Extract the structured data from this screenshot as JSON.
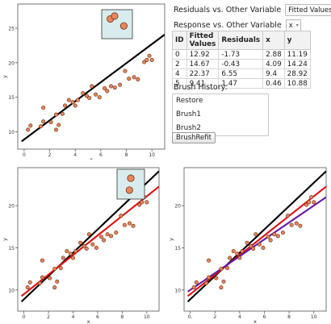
{
  "controls": {
    "residuals_label": "Residuals vs. Other Variable",
    "residuals_value": "Fitted Values",
    "response_label": "Response vs. Other Variable",
    "response_value": "x",
    "brush_history_label": "Brush History:",
    "brush_items": [
      "Restore",
      "Brush1",
      "Brush2"
    ],
    "refit_button": "BrushRefit"
  },
  "table": {
    "headers": [
      "ID",
      "Fitted Values",
      "Residuals",
      "x",
      "y"
    ],
    "rows": [
      [
        "0",
        "12.92",
        "-1.73",
        "2.88",
        "11.19"
      ],
      [
        "2",
        "14.67",
        "-0.43",
        "4.09",
        "14.24"
      ],
      [
        "4",
        "22.37",
        "6.55",
        "9.4",
        "28.92"
      ],
      [
        "5",
        "9.41",
        "1.47",
        "0.46",
        "10.88"
      ]
    ]
  },
  "chart_data": [
    {
      "type": "scatter",
      "xlabel": "x",
      "ylabel": "y",
      "xlim": [
        -0.5,
        11
      ],
      "ylim": [
        7.5,
        28.5
      ],
      "xticks": [
        0,
        2,
        4,
        6,
        8,
        10
      ],
      "xtick_labels": [
        "0",
        "2",
        "4",
        "6",
        "8",
        "10"
      ],
      "yticks": [
        10,
        15,
        20,
        25
      ],
      "points": [
        [
          0.3,
          10.3
        ],
        [
          0.5,
          10.9
        ],
        [
          1.3,
          10.8
        ],
        [
          1.5,
          11.5
        ],
        [
          1.5,
          13.5
        ],
        [
          2.1,
          11.4
        ],
        [
          2.5,
          12.5
        ],
        [
          2.5,
          10.3
        ],
        [
          2.7,
          11.0
        ],
        [
          3.0,
          12.6
        ],
        [
          3.2,
          13.8
        ],
        [
          3.5,
          14.6
        ],
        [
          3.8,
          14.3
        ],
        [
          4.0,
          13.8
        ],
        [
          4.2,
          14.6
        ],
        [
          4.6,
          15.6
        ],
        [
          4.9,
          15.2
        ],
        [
          5.1,
          14.9
        ],
        [
          5.3,
          16.6
        ],
        [
          5.6,
          15.4
        ],
        [
          5.9,
          15.0
        ],
        [
          6.3,
          16.3
        ],
        [
          6.5,
          15.9
        ],
        [
          6.8,
          16.6
        ],
        [
          7.1,
          16.4
        ],
        [
          7.5,
          16.8
        ],
        [
          7.9,
          18.8
        ],
        [
          8.2,
          17.7
        ],
        [
          8.6,
          17.9
        ],
        [
          8.9,
          17.6
        ],
        [
          9.4,
          20.1
        ],
        [
          9.6,
          20.4
        ],
        [
          9.8,
          21.0
        ],
        [
          10.0,
          20.4
        ]
      ],
      "lines": [
        {
          "intercept": 8.9,
          "slope": 1.38,
          "color": "#000000"
        }
      ],
      "inset": {
        "points": [
          [
            0.28,
            0.32
          ],
          [
            0.42,
            0.22
          ],
          [
            0.72,
            0.56
          ]
        ]
      }
    },
    {
      "type": "scatter",
      "xlabel": "x",
      "ylabel": "y",
      "xlim": [
        -0.5,
        11
      ],
      "ylim": [
        7.5,
        24.5
      ],
      "xticks": [
        0,
        2,
        4,
        6,
        8,
        10
      ],
      "xtick_labels": [
        "0",
        "2",
        "4",
        "6",
        "8",
        "10"
      ],
      "yticks": [
        10,
        15,
        20
      ],
      "points": [
        [
          0.3,
          10.3
        ],
        [
          0.5,
          10.9
        ],
        [
          1.3,
          10.8
        ],
        [
          1.5,
          11.5
        ],
        [
          1.5,
          13.5
        ],
        [
          2.1,
          11.4
        ],
        [
          2.5,
          12.5
        ],
        [
          2.5,
          10.3
        ],
        [
          2.7,
          11.0
        ],
        [
          3.0,
          12.6
        ],
        [
          3.2,
          13.8
        ],
        [
          3.5,
          14.6
        ],
        [
          3.8,
          14.3
        ],
        [
          4.0,
          13.8
        ],
        [
          4.2,
          14.6
        ],
        [
          4.6,
          15.6
        ],
        [
          4.9,
          15.2
        ],
        [
          5.1,
          14.9
        ],
        [
          5.3,
          16.6
        ],
        [
          5.6,
          15.4
        ],
        [
          5.9,
          15.0
        ],
        [
          6.3,
          16.3
        ],
        [
          6.5,
          15.9
        ],
        [
          6.8,
          16.6
        ],
        [
          7.1,
          16.4
        ],
        [
          7.5,
          16.8
        ],
        [
          7.9,
          18.8
        ],
        [
          8.2,
          17.7
        ],
        [
          8.6,
          17.9
        ],
        [
          8.9,
          17.6
        ],
        [
          9.4,
          20.1
        ],
        [
          9.6,
          20.4
        ],
        [
          9.8,
          21.0
        ],
        [
          10.0,
          20.4
        ]
      ],
      "lines": [
        {
          "intercept": 8.9,
          "slope": 1.38,
          "color": "#000000"
        },
        {
          "intercept": 9.5,
          "slope": 1.16,
          "color": "#e01010"
        }
      ],
      "inset": {
        "points": [
          [
            0.5,
            0.3
          ],
          [
            0.45,
            0.7
          ]
        ]
      }
    },
    {
      "type": "scatter",
      "xlabel": "x",
      "ylabel": "y",
      "xlim": [
        -0.5,
        11
      ],
      "ylim": [
        7.5,
        24.5
      ],
      "xticks": [
        0,
        2,
        4,
        6,
        8,
        10
      ],
      "xtick_labels": [
        "0.",
        "2",
        "4",
        "6",
        "8",
        "10"
      ],
      "yticks": [
        10,
        15,
        20
      ],
      "points": [
        [
          0.3,
          10.3
        ],
        [
          0.5,
          10.9
        ],
        [
          1.3,
          10.8
        ],
        [
          1.5,
          11.5
        ],
        [
          1.5,
          13.5
        ],
        [
          2.1,
          11.4
        ],
        [
          2.5,
          12.5
        ],
        [
          2.5,
          10.3
        ],
        [
          2.7,
          11.0
        ],
        [
          3.0,
          12.6
        ],
        [
          3.2,
          13.8
        ],
        [
          3.5,
          14.6
        ],
        [
          3.8,
          14.3
        ],
        [
          4.0,
          13.8
        ],
        [
          4.2,
          14.6
        ],
        [
          4.6,
          15.6
        ],
        [
          4.9,
          15.2
        ],
        [
          5.1,
          14.9
        ],
        [
          5.3,
          16.6
        ],
        [
          5.6,
          15.4
        ],
        [
          5.9,
          15.0
        ],
        [
          6.3,
          16.3
        ],
        [
          6.5,
          15.9
        ],
        [
          6.8,
          16.6
        ],
        [
          7.1,
          16.4
        ],
        [
          7.5,
          16.8
        ],
        [
          7.9,
          18.8
        ],
        [
          8.2,
          17.7
        ],
        [
          8.6,
          17.9
        ],
        [
          8.9,
          17.6
        ],
        [
          9.4,
          20.1
        ],
        [
          9.6,
          20.4
        ],
        [
          9.8,
          21.0
        ],
        [
          10.0,
          20.4
        ]
      ],
      "lines": [
        {
          "intercept": 8.9,
          "slope": 1.38,
          "color": "#000000"
        },
        {
          "intercept": 9.5,
          "slope": 1.16,
          "color": "#e01010"
        },
        {
          "intercept": 10.0,
          "slope": 1.0,
          "color": "#6a1aa6"
        }
      ]
    }
  ]
}
